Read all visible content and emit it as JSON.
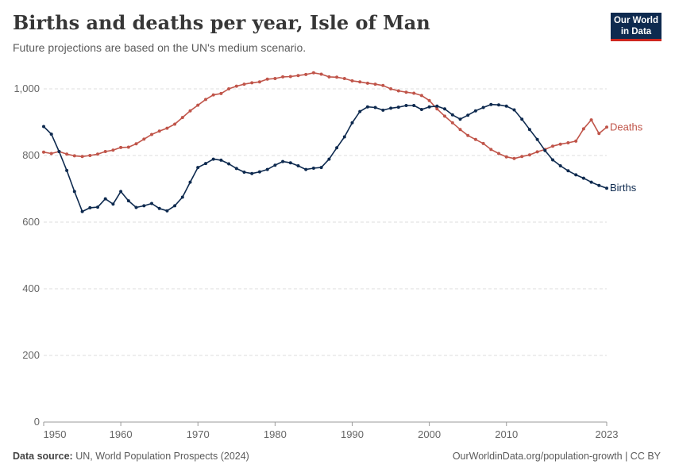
{
  "header": {
    "title": "Births and deaths per year, Isle of Man",
    "subtitle": "Future projections are based on the UN's medium scenario."
  },
  "logo": {
    "line1": "Our World",
    "line2": "in Data",
    "bg": "#0e2a4f",
    "accent": "#ce261e"
  },
  "footer": {
    "source_label": "Data source:",
    "source_text": "UN, World Population Prospects (2024)",
    "link_text": "OurWorldinData.org/population-growth",
    "license": " | CC BY"
  },
  "chart_data": {
    "type": "line",
    "title": "Births and deaths per year, Isle of Man",
    "subtitle": "Future projections are based on the UN's medium scenario.",
    "xlabel": "",
    "ylabel": "",
    "xlim": [
      1950,
      2023
    ],
    "ylim": [
      0,
      1000
    ],
    "x_ticks": [
      "1950",
      "1960",
      "1970",
      "1980",
      "1990",
      "2000",
      "2010",
      "2023"
    ],
    "y_ticks": [
      "0",
      "200",
      "400",
      "600",
      "800",
      "1,000"
    ],
    "grid": true,
    "legend": "inline-right",
    "x": [
      1950,
      1951,
      1952,
      1953,
      1954,
      1955,
      1956,
      1957,
      1958,
      1959,
      1960,
      1961,
      1962,
      1963,
      1964,
      1965,
      1966,
      1967,
      1968,
      1969,
      1970,
      1971,
      1972,
      1973,
      1974,
      1975,
      1976,
      1977,
      1978,
      1979,
      1980,
      1981,
      1982,
      1983,
      1984,
      1985,
      1986,
      1987,
      1988,
      1989,
      1990,
      1991,
      1992,
      1993,
      1994,
      1995,
      1996,
      1997,
      1998,
      1999,
      2000,
      2001,
      2002,
      2003,
      2004,
      2005,
      2006,
      2007,
      2008,
      2009,
      2010,
      2011,
      2012,
      2013,
      2014,
      2015,
      2016,
      2017,
      2018,
      2019,
      2020,
      2021,
      2022,
      2023
    ],
    "series": [
      {
        "name": "Deaths",
        "color": "#c0554a",
        "values": [
          810,
          806,
          812,
          804,
          799,
          797,
          800,
          804,
          812,
          816,
          824,
          825,
          835,
          849,
          863,
          873,
          882,
          894,
          914,
          934,
          951,
          968,
          982,
          986,
          1000,
          1008,
          1014,
          1018,
          1021,
          1029,
          1031,
          1036,
          1037,
          1040,
          1043,
          1048,
          1044,
          1036,
          1035,
          1031,
          1024,
          1021,
          1017,
          1014,
          1010,
          1000,
          994,
          990,
          987,
          980,
          965,
          940,
          918,
          898,
          878,
          860,
          848,
          836,
          818,
          806,
          796,
          791,
          797,
          802,
          811,
          818,
          828,
          834,
          838,
          843,
          880,
          907,
          866,
          885
        ]
      },
      {
        "name": "Births",
        "color": "#0e2a4f",
        "values": [
          887,
          864,
          812,
          755,
          692,
          632,
          643,
          645,
          670,
          654,
          692,
          664,
          644,
          649,
          656,
          641,
          634,
          649,
          675,
          720,
          764,
          776,
          789,
          786,
          775,
          761,
          750,
          746,
          751,
          758,
          771,
          782,
          778,
          769,
          758,
          762,
          764,
          789,
          823,
          856,
          898,
          932,
          946,
          944,
          936,
          942,
          945,
          950,
          950,
          938,
          946,
          948,
          940,
          922,
          909,
          921,
          934,
          944,
          953,
          952,
          948,
          937,
          909,
          878,
          848,
          815,
          787,
          769,
          754,
          742,
          732,
          720,
          710,
          702
        ]
      }
    ]
  }
}
